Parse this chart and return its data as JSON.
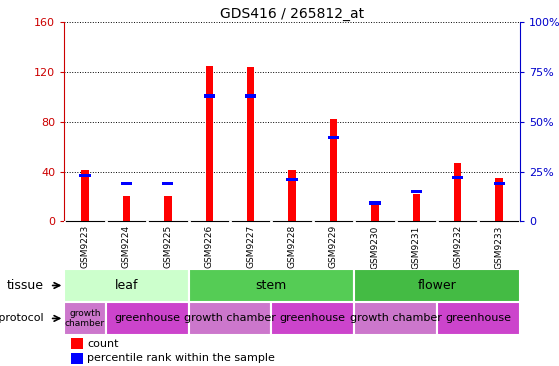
{
  "title": "GDS416 / 265812_at",
  "samples": [
    "GSM9223",
    "GSM9224",
    "GSM9225",
    "GSM9226",
    "GSM9227",
    "GSM9228",
    "GSM9229",
    "GSM9230",
    "GSM9231",
    "GSM9232",
    "GSM9233"
  ],
  "count_values": [
    41,
    20,
    20,
    125,
    124,
    41,
    82,
    16,
    22,
    47,
    35
  ],
  "percentile_values": [
    24,
    20,
    20,
    64,
    64,
    22,
    43,
    10,
    16,
    23,
    20
  ],
  "left_ylim": [
    0,
    160
  ],
  "right_ylim": [
    0,
    100
  ],
  "left_yticks": [
    0,
    40,
    80,
    120,
    160
  ],
  "right_yticks": [
    0,
    25,
    50,
    75,
    100
  ],
  "bar_color_red": "#ff0000",
  "bar_color_blue": "#0000ff",
  "tissue_groups": [
    {
      "label": "leaf",
      "start": 0,
      "end": 3,
      "color": "#ccffcc"
    },
    {
      "label": "stem",
      "start": 3,
      "end": 7,
      "color": "#55cc55"
    },
    {
      "label": "flower",
      "start": 7,
      "end": 11,
      "color": "#44bb44"
    }
  ],
  "protocol_groups": [
    {
      "label": "growth\nchamber",
      "start": 0,
      "end": 1,
      "color": "#cc77cc"
    },
    {
      "label": "greenhouse",
      "start": 1,
      "end": 3,
      "color": "#cc44cc"
    },
    {
      "label": "growth chamber",
      "start": 3,
      "end": 5,
      "color": "#cc77cc"
    },
    {
      "label": "greenhouse",
      "start": 5,
      "end": 7,
      "color": "#cc44cc"
    },
    {
      "label": "growth chamber",
      "start": 7,
      "end": 9,
      "color": "#cc77cc"
    },
    {
      "label": "greenhouse",
      "start": 9,
      "end": 11,
      "color": "#cc44cc"
    }
  ],
  "bg_color": "#ffffff",
  "tick_color_left": "#cc0000",
  "tick_color_right": "#0000cc",
  "gray_cell_color": "#cccccc",
  "cell_divider_color": "#ffffff"
}
